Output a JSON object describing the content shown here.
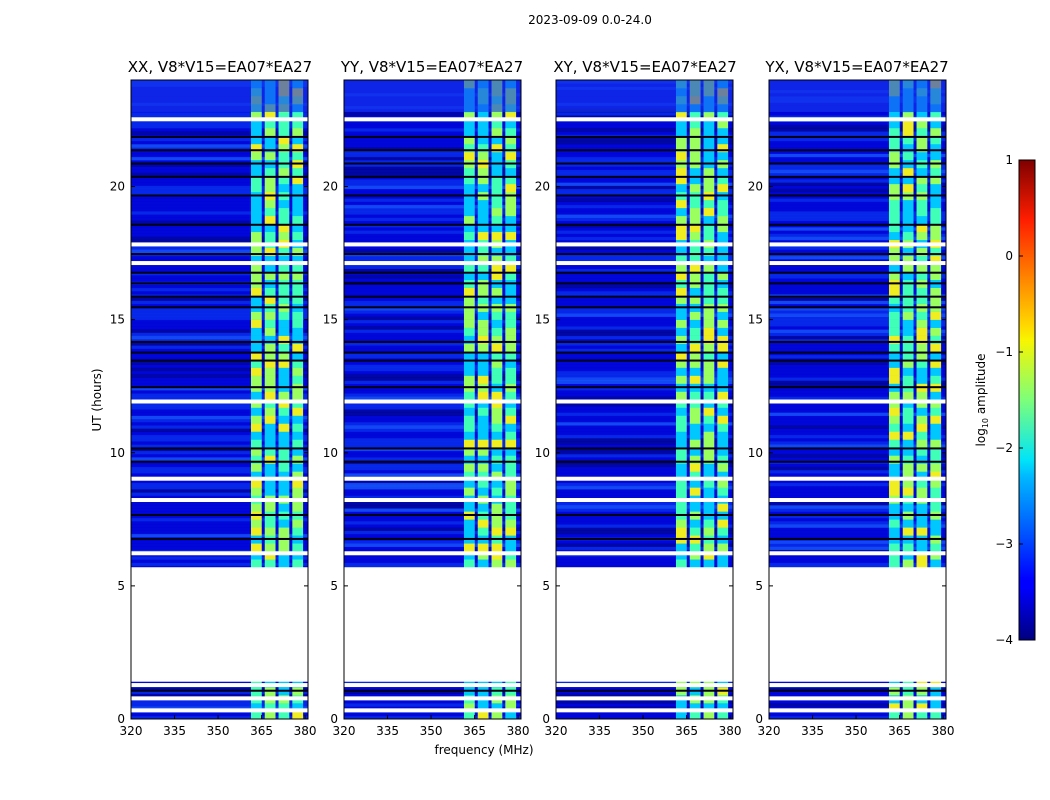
{
  "chart_data": {
    "type": "heatmap",
    "title": "2023-09-09 0.0-24.0",
    "xlabel": "frequency (MHz)",
    "ylabel": "UT (hours)",
    "xlim": [
      320,
      381
    ],
    "ylim": [
      0,
      24
    ],
    "xticks": [
      "320",
      "335",
      "350",
      "365",
      "380"
    ],
    "yticks": [
      "0",
      "5",
      "10",
      "15",
      "20"
    ],
    "panels": [
      {
        "title": "XX, V8*V15=EA07*EA27"
      },
      {
        "title": "YY, V8*V15=EA07*EA27"
      },
      {
        "title": "XY, V8*V15=EA07*EA27"
      },
      {
        "title": "YX, V8*V15=EA07*EA27"
      }
    ],
    "colorbar": {
      "label_prefix": "log",
      "label_sub": "10",
      "label_suffix": " amplitude",
      "range": [
        -4,
        1
      ],
      "ticks": [
        "1",
        "0",
        "−1",
        "−2",
        "−3",
        "−4"
      ],
      "colormap": "jet"
    },
    "bright_band_mhz": [
      361,
      380
    ],
    "flagged_gap_hours": [
      1.4,
      5.7
    ]
  }
}
